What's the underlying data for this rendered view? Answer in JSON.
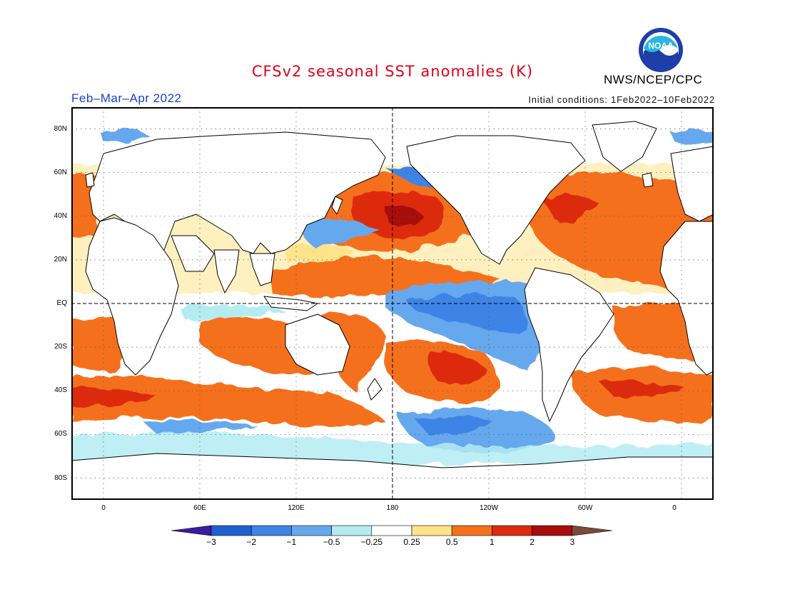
{
  "title": "CFSv2 seasonal SST anomalies (K)",
  "organization": "NWS/NCEP/CPC",
  "logo_text": "NOAA",
  "period": "Feb–Mar–Apr 2022",
  "initial_conditions": "Initial conditions: 1Feb2022–10Feb2022",
  "lat_labels": [
    "80N",
    "60N",
    "40N",
    "20N",
    "EQ",
    "20S",
    "40S",
    "60S",
    "80S"
  ],
  "lon_labels": [
    "0",
    "60E",
    "120E",
    "180",
    "120W",
    "60W",
    "0"
  ],
  "colorbar": {
    "labels": [
      "−3",
      "−2",
      "−1",
      "−0.5",
      "−0.25",
      "0.25",
      "0.5",
      "1",
      "2",
      "3"
    ],
    "colors": [
      "#3a1d9e",
      "#1f5fd0",
      "#3d84e6",
      "#66a8ee",
      "#b4ecf2",
      "#ffffff",
      "#fde38a",
      "#f5701a",
      "#dd2a10",
      "#a80c0c",
      "#7c4a3a"
    ]
  },
  "map": {
    "projection": "cylindrical",
    "lon_range": [
      -20,
      380
    ],
    "lat_range": [
      -90,
      90
    ],
    "grid": "dotted every 20 degrees",
    "reference_lines": "dashed equator and 180 meridian"
  }
}
